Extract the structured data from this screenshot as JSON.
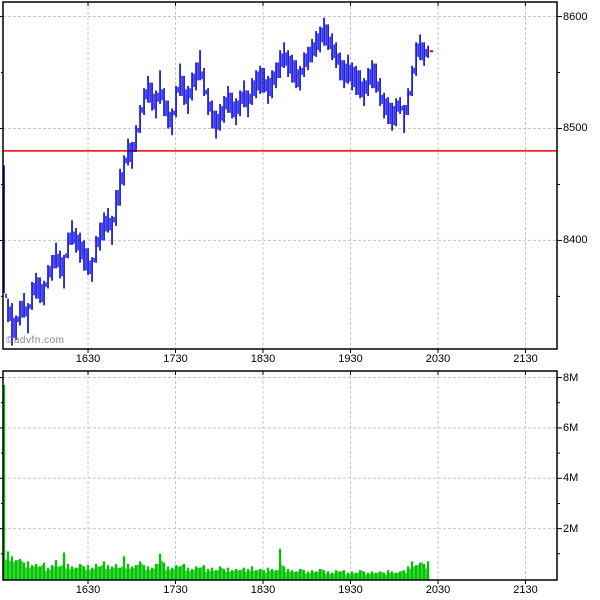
{
  "watermark": "©advfn.com",
  "colors": {
    "price_bar": "#0000dd",
    "volume_bar": "#00c400",
    "prev_close_line": "#ee0000",
    "last_trade_tick": "#ee0000",
    "grid": "#c2c8c2",
    "axis": "#000000",
    "watermark_text": "#848484",
    "background": "#ffffff"
  },
  "chart_data": [
    {
      "type": "bar",
      "subtype": "intraday-price-hilo-bars",
      "series_name": "price",
      "x_ticks": [
        {
          "t": 990,
          "label": "1630"
        },
        {
          "t": 1050,
          "label": "1730"
        },
        {
          "t": 1110,
          "label": "1830"
        },
        {
          "t": 1170,
          "label": "1930"
        },
        {
          "t": 1230,
          "label": "2030"
        },
        {
          "t": 1290,
          "label": "2130"
        }
      ],
      "xlim_minutes": [
        931.7,
        1311.6
      ],
      "ylim": [
        8303,
        8613
      ],
      "y_ticks": [
        {
          "value": 8600,
          "label": "8600"
        },
        {
          "value": 8500,
          "label": "8500"
        },
        {
          "value": 8400,
          "label": "8400"
        }
      ],
      "y_minor_ticks": [
        8550,
        8450,
        8350
      ],
      "grid": "dashed",
      "prev_close": 8480,
      "last_price": 8569,
      "t0": 932.4,
      "dt": 2.7434,
      "bars_high": [
        8467,
        8348,
        8344,
        8333,
        8346,
        8353,
        8344,
        8363,
        8371,
        8367,
        8364,
        8378,
        8387,
        8398,
        8391,
        8387,
        8407,
        8418,
        8411,
        8407,
        8400,
        8393,
        8385,
        8404,
        8416,
        8425,
        8429,
        8422,
        8445,
        8464,
        8476,
        8491,
        8488,
        8503,
        8521,
        8536,
        8547,
        8541,
        8534,
        8552,
        8536,
        8525,
        8518,
        8538,
        8558,
        8547,
        8538,
        8550,
        8559,
        8570,
        8554,
        8536,
        8525,
        8516,
        8522,
        8529,
        8538,
        8532,
        8527,
        8534,
        8543,
        8534,
        8545,
        8552,
        8556,
        8554,
        8547,
        8552,
        8559,
        8570,
        8577,
        8570,
        8566,
        8561,
        8556,
        8568,
        8573,
        8580,
        8587,
        8591,
        8599,
        8593,
        8585,
        8577,
        8568,
        8561,
        8566,
        8559,
        8556,
        8552,
        8545,
        8554,
        8561,
        8558,
        8545,
        8532,
        8528,
        8523,
        8527,
        8528,
        8521,
        8536,
        8556,
        8577,
        8584,
        8577,
        8574
      ],
      "bars_low": [
        8353,
        8327,
        8306,
        8311,
        8324,
        8331,
        8317,
        8338,
        8348,
        8344,
        8342,
        8357,
        8364,
        8375,
        8366,
        8357,
        8384,
        8396,
        8389,
        8380,
        8373,
        8369,
        8363,
        8380,
        8391,
        8400,
        8407,
        8396,
        8413,
        8431,
        8449,
        8467,
        8464,
        8479,
        8496,
        8512,
        8523,
        8516,
        8509,
        8522,
        8511,
        8500,
        8494,
        8510,
        8529,
        8521,
        8513,
        8525,
        8534,
        8543,
        8529,
        8512,
        8500,
        8491,
        8498,
        8505,
        8514,
        8509,
        8503,
        8511,
        8519,
        8510,
        8521,
        8527,
        8531,
        8532,
        8522,
        8527,
        8536,
        8545,
        8554,
        8546,
        8541,
        8536,
        8534,
        8546,
        8552,
        8559,
        8564,
        8568,
        8574,
        8570,
        8561,
        8554,
        8543,
        8536,
        8540,
        8534,
        8530,
        8527,
        8520,
        8529,
        8536,
        8532,
        8520,
        8509,
        8504,
        8498,
        8502,
        8513,
        8496,
        8512,
        8529,
        8547,
        8561,
        8556,
        8563
      ]
    },
    {
      "type": "bar",
      "subtype": "volume",
      "series_name": "volume",
      "x_ticks": [
        {
          "t": 990,
          "label": "1630"
        },
        {
          "t": 1050,
          "label": "1730"
        },
        {
          "t": 1110,
          "label": "1830"
        },
        {
          "t": 1170,
          "label": "1930"
        },
        {
          "t": 1230,
          "label": "2030"
        },
        {
          "t": 1290,
          "label": "2130"
        }
      ],
      "xlim_minutes": [
        931.7,
        1311.6
      ],
      "ylim_millions": [
        0,
        8.26
      ],
      "y_ticks": [
        {
          "value": 8,
          "label": "8M"
        },
        {
          "value": 6,
          "label": "6M"
        },
        {
          "value": 4,
          "label": "4M"
        },
        {
          "value": 2,
          "label": "2M"
        }
      ],
      "y_minor_ticks": [
        7,
        5,
        3,
        1
      ],
      "grid": "dashed",
      "t0": 932.4,
      "dt": 2.7434,
      "values_millions": [
        7.7,
        1.1,
        0.9,
        0.75,
        0.8,
        0.65,
        0.7,
        0.55,
        0.6,
        0.5,
        0.65,
        0.45,
        0.55,
        0.75,
        0.5,
        1.05,
        0.6,
        0.5,
        0.45,
        0.6,
        0.5,
        0.55,
        0.45,
        0.6,
        0.5,
        0.7,
        0.55,
        0.5,
        0.6,
        0.45,
        0.9,
        0.6,
        0.5,
        0.55,
        0.7,
        0.55,
        0.5,
        0.45,
        0.6,
        1.0,
        0.65,
        0.5,
        0.45,
        0.55,
        0.5,
        0.6,
        0.45,
        0.4,
        0.5,
        0.45,
        0.55,
        0.4,
        0.45,
        0.35,
        0.5,
        0.4,
        0.45,
        0.35,
        0.4,
        0.35,
        0.45,
        0.4,
        0.5,
        0.35,
        0.4,
        0.35,
        0.45,
        0.4,
        0.35,
        1.2,
        0.5,
        0.4,
        0.35,
        0.3,
        0.4,
        0.35,
        0.3,
        0.35,
        0.3,
        0.4,
        0.35,
        0.3,
        0.25,
        0.35,
        0.3,
        0.35,
        0.25,
        0.3,
        0.25,
        0.35,
        0.3,
        0.25,
        0.3,
        0.25,
        0.3,
        0.25,
        0.35,
        0.3,
        0.25,
        0.3,
        0.35,
        0.5,
        0.7,
        0.55,
        0.65,
        0.6,
        0.7
      ]
    }
  ]
}
